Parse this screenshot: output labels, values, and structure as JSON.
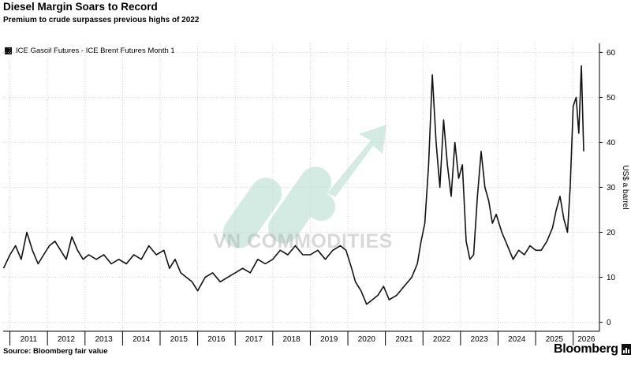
{
  "title": "Diesel Margin Soars to Record",
  "subtitle": "Premium to crude surpasses previous highs of 2022",
  "source": "Source: Bloomberg fair value",
  "brand": "Bloomberg",
  "watermark": "VN COMMODITIES",
  "colors": {
    "line": "#111111",
    "grid": "#c8c8c8",
    "axis": "#000000"
  },
  "chart_data": {
    "type": "line",
    "title": "Diesel Margin Soars to Record",
    "subtitle": "Premium to crude surpasses previous highs of 2022",
    "ylabel": "US$ a barrel",
    "y_axis_side": "right",
    "ylim": [
      -2,
      62
    ],
    "yticks": [
      0,
      10,
      20,
      30,
      40,
      50,
      60
    ],
    "xlim": [
      2010.82,
      2026.7
    ],
    "xticks": [
      "2011",
      "2012",
      "2013",
      "2014",
      "2015",
      "2016",
      "2017",
      "2018",
      "2019",
      "2020",
      "2021",
      "2022",
      "2023",
      "2024",
      "2025",
      "2026"
    ],
    "grid": true,
    "legend_position": "top-left",
    "series": [
      {
        "name": "ICE Gasoil Futures - ICE Brent Futures Month 1",
        "x": [
          2010.83,
          2011.0,
          2011.15,
          2011.3,
          2011.45,
          2011.6,
          2011.75,
          2011.9,
          2012.05,
          2012.2,
          2012.35,
          2012.5,
          2012.65,
          2012.8,
          2012.95,
          2013.1,
          2013.3,
          2013.5,
          2013.7,
          2013.9,
          2014.1,
          2014.3,
          2014.5,
          2014.7,
          2014.9,
          2015.1,
          2015.25,
          2015.4,
          2015.55,
          2015.7,
          2015.85,
          2016.0,
          2016.2,
          2016.4,
          2016.6,
          2016.8,
          2017.0,
          2017.2,
          2017.4,
          2017.6,
          2017.8,
          2018.0,
          2018.2,
          2018.4,
          2018.6,
          2018.8,
          2019.0,
          2019.2,
          2019.4,
          2019.6,
          2019.8,
          2019.95,
          2020.1,
          2020.2,
          2020.35,
          2020.5,
          2020.65,
          2020.8,
          2020.95,
          2021.1,
          2021.3,
          2021.5,
          2021.7,
          2021.85,
          2021.95,
          2022.05,
          2022.15,
          2022.25,
          2022.35,
          2022.45,
          2022.55,
          2022.65,
          2022.75,
          2022.85,
          2022.95,
          2023.05,
          2023.15,
          2023.25,
          2023.35,
          2023.45,
          2023.55,
          2023.65,
          2023.75,
          2023.85,
          2023.95,
          2024.1,
          2024.25,
          2024.4,
          2024.55,
          2024.7,
          2024.85,
          2025.0,
          2025.15,
          2025.3,
          2025.45,
          2025.55,
          2025.65,
          2025.75,
          2025.85,
          2025.92,
          2026.0,
          2026.08,
          2026.15,
          2026.22,
          2026.28
        ],
        "values": [
          12,
          15,
          17,
          14,
          20,
          16,
          13,
          15,
          17,
          18,
          16,
          14,
          19,
          16,
          14,
          15,
          14,
          15,
          13,
          14,
          13,
          15,
          14,
          17,
          15,
          16,
          12,
          14,
          11,
          10,
          9,
          7,
          10,
          11,
          9,
          10,
          11,
          12,
          11,
          14,
          13,
          14,
          16,
          15,
          17,
          15,
          15,
          16,
          14,
          16,
          17,
          16,
          12,
          9,
          7,
          4,
          5,
          6,
          8,
          5,
          6,
          8,
          10,
          13,
          18,
          22,
          35,
          55,
          40,
          30,
          45,
          35,
          28,
          40,
          32,
          35,
          18,
          14,
          15,
          28,
          38,
          30,
          27,
          22,
          24,
          20,
          17,
          14,
          16,
          15,
          17,
          16,
          16,
          18,
          21,
          25,
          28,
          23,
          20,
          30,
          48,
          50,
          42,
          57,
          38
        ]
      }
    ]
  }
}
